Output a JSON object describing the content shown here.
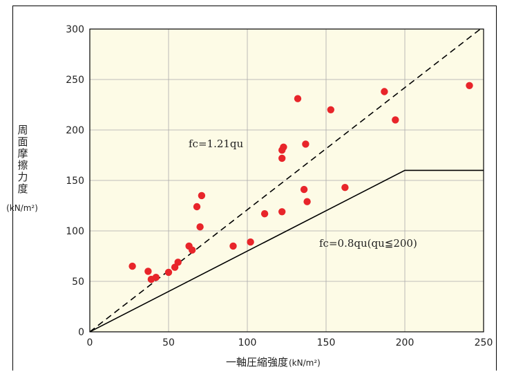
{
  "chart_data": {
    "type": "scatter",
    "xlabel": "一軸圧縮強度",
    "xunit": "(kN/m²)",
    "ylabel_chars": [
      "周",
      "面",
      "摩",
      "擦",
      "力",
      "度"
    ],
    "yunit": "(kN/m²)",
    "xlim": [
      0,
      250
    ],
    "ylim": [
      0,
      300
    ],
    "xticks": [
      0,
      50,
      100,
      150,
      200,
      250
    ],
    "yticks": [
      0,
      50,
      100,
      150,
      200,
      250,
      300
    ],
    "grid": true,
    "colors": {
      "plot_bg": "#fdfbe6",
      "grid": "#aaaaaa",
      "point": "#e8252a",
      "line": "#000000"
    },
    "points": [
      [
        27,
        65
      ],
      [
        37,
        60
      ],
      [
        39,
        52
      ],
      [
        42,
        54
      ],
      [
        50,
        59
      ],
      [
        54,
        64
      ],
      [
        56,
        69
      ],
      [
        63,
        85
      ],
      [
        65,
        81
      ],
      [
        68,
        124
      ],
      [
        70,
        104
      ],
      [
        71,
        135
      ],
      [
        91,
        85
      ],
      [
        102,
        89
      ],
      [
        111,
        117
      ],
      [
        122,
        119
      ],
      [
        122,
        172
      ],
      [
        122,
        180
      ],
      [
        123,
        183
      ],
      [
        132,
        231
      ],
      [
        136,
        141
      ],
      [
        137,
        186
      ],
      [
        138,
        129
      ],
      [
        153,
        220
      ],
      [
        162,
        143
      ],
      [
        187,
        238
      ],
      [
        194,
        210
      ],
      [
        241,
        244
      ]
    ],
    "lines": [
      {
        "label": "fc=1.21qu",
        "style": "dashed",
        "points": [
          [
            0,
            0
          ],
          [
            250,
            302.5
          ]
        ]
      },
      {
        "label": "fc=0.8qu(qu≦200)",
        "style": "solid",
        "points": [
          [
            0,
            0
          ],
          [
            200,
            160
          ],
          [
            250,
            160
          ]
        ]
      }
    ]
  }
}
